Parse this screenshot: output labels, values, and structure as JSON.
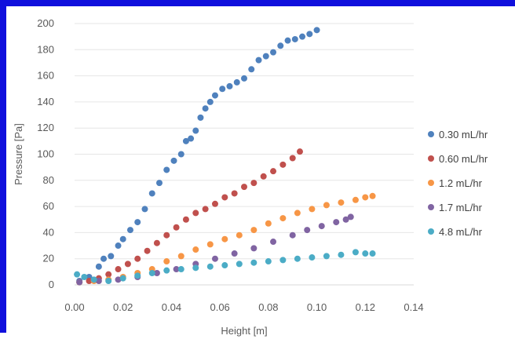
{
  "chart_data": {
    "type": "scatter",
    "title": "",
    "xlabel": "Height   [m]",
    "ylabel": "Pressure   [Pa]",
    "xlim": [
      0,
      0.14
    ],
    "ylim": [
      0,
      200
    ],
    "x_ticks": [
      "0.00",
      "0.02",
      "0.04",
      "0.06",
      "0.08",
      "0.10",
      "0.12",
      "0.14"
    ],
    "y_ticks": [
      "0",
      "20",
      "40",
      "60",
      "80",
      "100",
      "120",
      "140",
      "160",
      "180",
      "200"
    ],
    "grid": "horizontal",
    "legend_position": "right",
    "series": [
      {
        "name": "0.30 mL/hr",
        "color": "#4f81bd",
        "points": [
          [
            0.002,
            3
          ],
          [
            0.006,
            6
          ],
          [
            0.01,
            14
          ],
          [
            0.012,
            20
          ],
          [
            0.015,
            22
          ],
          [
            0.018,
            30
          ],
          [
            0.02,
            35
          ],
          [
            0.023,
            42
          ],
          [
            0.026,
            48
          ],
          [
            0.029,
            58
          ],
          [
            0.032,
            70
          ],
          [
            0.035,
            78
          ],
          [
            0.038,
            88
          ],
          [
            0.041,
            95
          ],
          [
            0.044,
            100
          ],
          [
            0.046,
            110
          ],
          [
            0.048,
            112
          ],
          [
            0.05,
            118
          ],
          [
            0.052,
            128
          ],
          [
            0.054,
            135
          ],
          [
            0.056,
            140
          ],
          [
            0.058,
            145
          ],
          [
            0.061,
            150
          ],
          [
            0.064,
            152
          ],
          [
            0.067,
            155
          ],
          [
            0.07,
            158
          ],
          [
            0.073,
            165
          ],
          [
            0.076,
            172
          ],
          [
            0.079,
            175
          ],
          [
            0.082,
            178
          ],
          [
            0.085,
            183
          ],
          [
            0.088,
            187
          ],
          [
            0.091,
            188
          ],
          [
            0.094,
            190
          ],
          [
            0.097,
            192
          ],
          [
            0.1,
            195
          ]
        ]
      },
      {
        "name": "0.60 mL/hr",
        "color": "#c0504d",
        "points": [
          [
            0.002,
            2
          ],
          [
            0.006,
            3
          ],
          [
            0.01,
            5
          ],
          [
            0.014,
            8
          ],
          [
            0.018,
            12
          ],
          [
            0.022,
            16
          ],
          [
            0.026,
            20
          ],
          [
            0.03,
            26
          ],
          [
            0.034,
            32
          ],
          [
            0.038,
            38
          ],
          [
            0.042,
            44
          ],
          [
            0.046,
            50
          ],
          [
            0.05,
            55
          ],
          [
            0.054,
            58
          ],
          [
            0.058,
            62
          ],
          [
            0.062,
            67
          ],
          [
            0.066,
            70
          ],
          [
            0.07,
            75
          ],
          [
            0.074,
            78
          ],
          [
            0.078,
            83
          ],
          [
            0.082,
            87
          ],
          [
            0.086,
            92
          ],
          [
            0.09,
            97
          ],
          [
            0.093,
            102
          ]
        ]
      },
      {
        "name": "1.2 mL/hr",
        "color": "#f79646",
        "points": [
          [
            0.002,
            2
          ],
          [
            0.008,
            3
          ],
          [
            0.014,
            4
          ],
          [
            0.02,
            6
          ],
          [
            0.026,
            9
          ],
          [
            0.032,
            12
          ],
          [
            0.038,
            18
          ],
          [
            0.044,
            22
          ],
          [
            0.05,
            27
          ],
          [
            0.056,
            31
          ],
          [
            0.062,
            35
          ],
          [
            0.068,
            38
          ],
          [
            0.074,
            42
          ],
          [
            0.08,
            47
          ],
          [
            0.086,
            51
          ],
          [
            0.092,
            55
          ],
          [
            0.098,
            58
          ],
          [
            0.104,
            61
          ],
          [
            0.11,
            63
          ],
          [
            0.116,
            65
          ],
          [
            0.12,
            67
          ],
          [
            0.123,
            68
          ]
        ]
      },
      {
        "name": "1.7 mL/hr",
        "color": "#8064a2",
        "points": [
          [
            0.002,
            2
          ],
          [
            0.01,
            3
          ],
          [
            0.018,
            4
          ],
          [
            0.026,
            6
          ],
          [
            0.034,
            9
          ],
          [
            0.042,
            12
          ],
          [
            0.05,
            16
          ],
          [
            0.058,
            20
          ],
          [
            0.066,
            24
          ],
          [
            0.074,
            28
          ],
          [
            0.082,
            33
          ],
          [
            0.09,
            38
          ],
          [
            0.096,
            42
          ],
          [
            0.102,
            45
          ],
          [
            0.108,
            48
          ],
          [
            0.112,
            50
          ],
          [
            0.114,
            52
          ]
        ]
      },
      {
        "name": "4.8 mL/hr",
        "color": "#4bacc6",
        "points": [
          [
            0.001,
            8
          ],
          [
            0.004,
            6
          ],
          [
            0.008,
            4
          ],
          [
            0.014,
            3
          ],
          [
            0.02,
            5
          ],
          [
            0.026,
            7
          ],
          [
            0.032,
            9
          ],
          [
            0.038,
            11
          ],
          [
            0.044,
            12
          ],
          [
            0.05,
            13
          ],
          [
            0.056,
            14
          ],
          [
            0.062,
            15
          ],
          [
            0.068,
            16
          ],
          [
            0.074,
            17
          ],
          [
            0.08,
            18
          ],
          [
            0.086,
            19
          ],
          [
            0.092,
            20
          ],
          [
            0.098,
            21
          ],
          [
            0.104,
            22
          ],
          [
            0.11,
            23
          ],
          [
            0.116,
            25
          ],
          [
            0.12,
            24
          ],
          [
            0.123,
            24
          ]
        ]
      }
    ]
  }
}
